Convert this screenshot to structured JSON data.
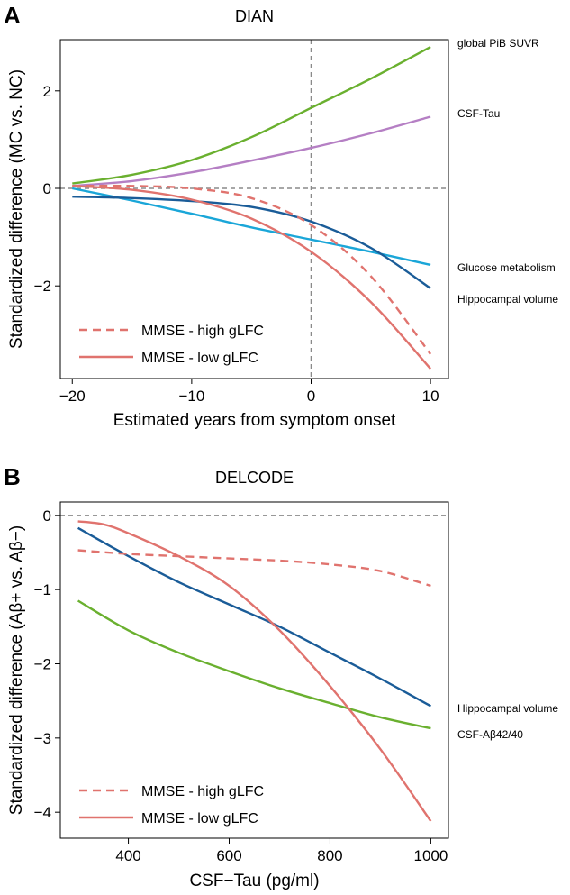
{
  "chart_data": [
    {
      "panel": "A",
      "type": "line",
      "title": "DIAN",
      "xlabel": "Estimated years from symptom onset",
      "ylabel": "Standardized difference (MC vs. NC)",
      "xlim": [
        -21,
        11.5
      ],
      "ylim": [
        -3.9,
        3.05
      ],
      "xticks": [
        -20,
        -10,
        0,
        10
      ],
      "xtick_labels": [
        "−20",
        "−10",
        "0",
        "10"
      ],
      "yticks": [
        -2,
        0,
        2
      ],
      "ytick_labels": [
        "−2",
        "0",
        "2"
      ],
      "reference_lines": {
        "x": 0,
        "y": 0
      },
      "series": [
        {
          "name": "global PiB SUVR",
          "color": "#6ab02f",
          "dash": false,
          "x": [
            -20,
            -15,
            -10,
            -5,
            0,
            5,
            10
          ],
          "y": [
            0.1,
            0.28,
            0.58,
            1.05,
            1.65,
            2.25,
            2.9
          ]
        },
        {
          "name": "CSF-Tau",
          "color": "#b57fc4",
          "dash": false,
          "x": [
            -20,
            -15,
            -10,
            -5,
            0,
            5,
            10
          ],
          "y": [
            0.05,
            0.15,
            0.33,
            0.57,
            0.83,
            1.13,
            1.47
          ]
        },
        {
          "name": "Glucose metabolism",
          "color": "#1aa6d8",
          "dash": false,
          "x": [
            -20,
            -15,
            -10,
            -5,
            0,
            5,
            10
          ],
          "y": [
            0.0,
            -0.25,
            -0.52,
            -0.8,
            -1.05,
            -1.3,
            -1.57
          ]
        },
        {
          "name": "Hippocampal volume",
          "color": "#1a5c98",
          "dash": false,
          "x": [
            -20,
            -15,
            -10,
            -5,
            0,
            5,
            10
          ],
          "y": [
            -0.17,
            -0.2,
            -0.26,
            -0.38,
            -0.68,
            -1.22,
            -2.05
          ]
        },
        {
          "name": "MMSE - high gLFC",
          "color": "#e0736e",
          "dash": true,
          "x": [
            -20,
            -15,
            -10,
            -5,
            0,
            5,
            10
          ],
          "y": [
            0.05,
            0.05,
            0.0,
            -0.2,
            -0.75,
            -1.8,
            -3.4
          ]
        },
        {
          "name": "MMSE - low gLFC",
          "color": "#e0736e",
          "dash": false,
          "x": [
            -20,
            -15,
            -10,
            -5,
            0,
            5,
            10
          ],
          "y": [
            0.05,
            -0.03,
            -0.23,
            -0.62,
            -1.3,
            -2.33,
            -3.7
          ]
        }
      ],
      "side_labels": [
        "global PiB SUVR",
        "CSF-Tau",
        "Glucose metabolism",
        "Hippocampal volume"
      ],
      "legend": [
        {
          "label": "MMSE - high gLFC",
          "dash": true
        },
        {
          "label": "MMSE - low gLFC",
          "dash": false
        }
      ]
    },
    {
      "panel": "B",
      "type": "line",
      "title": "DELCODE",
      "xlabel": "CSF−Tau (pg/ml)",
      "ylabel": "Standardized difference (Aβ+ vs. Aβ−)",
      "xlim": [
        265,
        1035
      ],
      "ylim": [
        -4.35,
        0.18
      ],
      "xticks": [
        400,
        600,
        800,
        1000
      ],
      "xtick_labels": [
        "400",
        "600",
        "800",
        "1000"
      ],
      "yticks": [
        -4,
        -3,
        -2,
        -1,
        0
      ],
      "ytick_labels": [
        "−4",
        "−3",
        "−2",
        "−1",
        "0"
      ],
      "reference_lines": {
        "y": 0
      },
      "series": [
        {
          "name": "Hippocampal volume",
          "color": "#1a5c98",
          "dash": false,
          "x": [
            300,
            400,
            500,
            600,
            700,
            800,
            900,
            1000
          ],
          "y": [
            -0.17,
            -0.55,
            -0.9,
            -1.2,
            -1.5,
            -1.85,
            -2.2,
            -2.57
          ]
        },
        {
          "name": "CSF-Aβ42/40",
          "color": "#6ab02f",
          "dash": false,
          "x": [
            300,
            400,
            500,
            600,
            700,
            800,
            900,
            1000
          ],
          "y": [
            -1.15,
            -1.55,
            -1.85,
            -2.1,
            -2.33,
            -2.53,
            -2.72,
            -2.87
          ]
        },
        {
          "name": "MMSE - high gLFC",
          "color": "#e0736e",
          "dash": true,
          "x": [
            300,
            400,
            500,
            600,
            700,
            800,
            900,
            1000
          ],
          "y": [
            -0.47,
            -0.52,
            -0.55,
            -0.58,
            -0.61,
            -0.66,
            -0.75,
            -0.95
          ]
        },
        {
          "name": "MMSE - low gLFC",
          "color": "#e0736e",
          "dash": false,
          "x": [
            300,
            350,
            400,
            500,
            600,
            700,
            800,
            900,
            1000
          ],
          "y": [
            -0.08,
            -0.12,
            -0.24,
            -0.55,
            -0.95,
            -1.55,
            -2.3,
            -3.15,
            -4.12
          ]
        }
      ],
      "side_labels": [
        "Hippocampal volume",
        "CSF-Aβ42/40"
      ],
      "legend": [
        {
          "label": "MMSE - high gLFC",
          "dash": true
        },
        {
          "label": "MMSE - low gLFC",
          "dash": false
        }
      ]
    }
  ]
}
